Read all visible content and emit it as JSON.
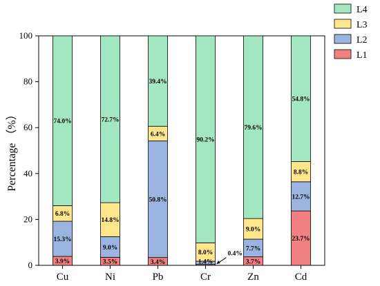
{
  "chart_data": {
    "type": "bar",
    "stacked": true,
    "categories": [
      "Cu",
      "Ni",
      "Pb",
      "Cr",
      "Zn",
      "Cd"
    ],
    "series": [
      {
        "name": "L1",
        "color": "#f28080",
        "values": [
          3.9,
          3.5,
          3.4,
          0.4,
          3.7,
          23.7
        ]
      },
      {
        "name": "L2",
        "color": "#9bb5e0",
        "values": [
          15.3,
          9.0,
          50.8,
          1.4,
          7.7,
          12.7
        ]
      },
      {
        "name": "L3",
        "color": "#ffe68c",
        "values": [
          6.8,
          14.8,
          6.4,
          8.0,
          9.0,
          8.8
        ]
      },
      {
        "name": "L4",
        "color": "#a3e6c2",
        "values": [
          74.0,
          72.7,
          39.4,
          90.2,
          79.6,
          54.8
        ]
      }
    ],
    "data_labels": [
      [
        "3.9%",
        "3.5%",
        "3.4%",
        "0.4%",
        "3.7%",
        "23.7%"
      ],
      [
        "15.3%",
        "9.0%",
        "50.8%",
        "1.4%",
        "7.7%",
        "12.7%"
      ],
      [
        "6.8%",
        "14.8%",
        "6.4%",
        "8.0%",
        "9.0%",
        "8.8%"
      ],
      [
        "74.0%",
        "72.7%",
        "39.4%",
        "90.2%",
        "79.6%",
        "54.8%"
      ]
    ],
    "ylabel": "Percentage （%）",
    "xlabel": "",
    "title": "",
    "ylim": [
      0,
      100
    ],
    "yticks": [
      0,
      20,
      40,
      60,
      80,
      100
    ],
    "ytick_labels": [
      "0",
      "20",
      "40",
      "60",
      "80",
      "100"
    ],
    "legend_order": [
      "L4",
      "L3",
      "L2",
      "L1"
    ],
    "legend_position": "top-right",
    "annotation": {
      "text": "0.4%",
      "points_to": "Cr L1"
    },
    "grid": false
  }
}
